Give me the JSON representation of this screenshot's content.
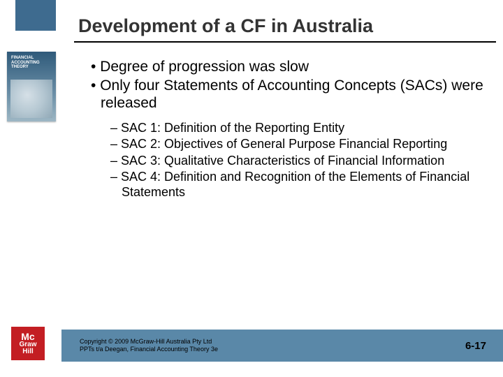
{
  "colors": {
    "sidebar_block": "#3e6b8f",
    "footer_bar": "#5a88a8",
    "logo_bg": "#c31e23",
    "title_color": "#333333",
    "rule_color": "#000000",
    "text_color": "#000000",
    "background": "#ffffff"
  },
  "title": "Development of a CF in Australia",
  "title_fontsize": 27,
  "body_fontsize": 21,
  "sub_fontsize": 18,
  "bullets": [
    "Degree of progression was slow",
    "Only four Statements of Accounting Concepts (SACs) were released"
  ],
  "sub_bullets": [
    "SAC 1: Definition of the Reporting Entity",
    "SAC 2: Objectives of General Purpose Financial Reporting",
    "SAC 3: Qualitative Characteristics of Financial Information",
    "SAC 4: Definition and Recognition of the Elements of Financial Statements"
  ],
  "book": {
    "line1": "FINANCIAL",
    "line2": "ACCOUNTING",
    "line3": "THEORY"
  },
  "logo": {
    "mc": "Mc",
    "graw": "Graw",
    "hill": "Hill"
  },
  "copyright_line1": "Copyright © 2009 McGraw-Hill Australia Pty Ltd",
  "copyright_line2": "PPTs t/a Deegan, Financial Accounting Theory 3e",
  "slide_number": "6-17"
}
